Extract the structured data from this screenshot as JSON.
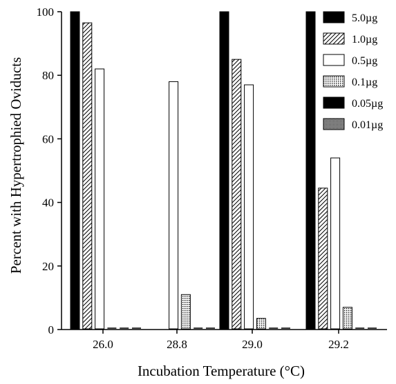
{
  "chart_data": {
    "type": "bar",
    "title": "",
    "xlabel": "Incubation Temperature (°C)",
    "ylabel": "Percent with Hypertrophied Oviducts",
    "ylim": [
      0,
      100
    ],
    "yticks": [
      "0",
      "20",
      "40",
      "60",
      "80",
      "100"
    ],
    "categories": [
      "26.0",
      "28.8",
      "29.0",
      "29.2"
    ],
    "grid": false,
    "legend_position": "top-right",
    "series": [
      {
        "name": "5.0µg",
        "pattern": "solid",
        "values": [
          100,
          null,
          100,
          100
        ]
      },
      {
        "name": "1.0µg",
        "pattern": "hatch",
        "values": [
          96.5,
          null,
          85,
          44.5
        ]
      },
      {
        "name": "0.5µg",
        "pattern": "open",
        "values": [
          82,
          78,
          77,
          54
        ]
      },
      {
        "name": "0.1µg",
        "pattern": "dotted",
        "values": [
          0,
          11,
          3.5,
          7
        ]
      },
      {
        "name": "0.05µg",
        "pattern": "solid",
        "values": [
          0,
          0,
          0,
          0
        ]
      },
      {
        "name": "0.01µg",
        "pattern": "dense",
        "values": [
          0,
          0,
          0,
          0
        ]
      }
    ]
  }
}
